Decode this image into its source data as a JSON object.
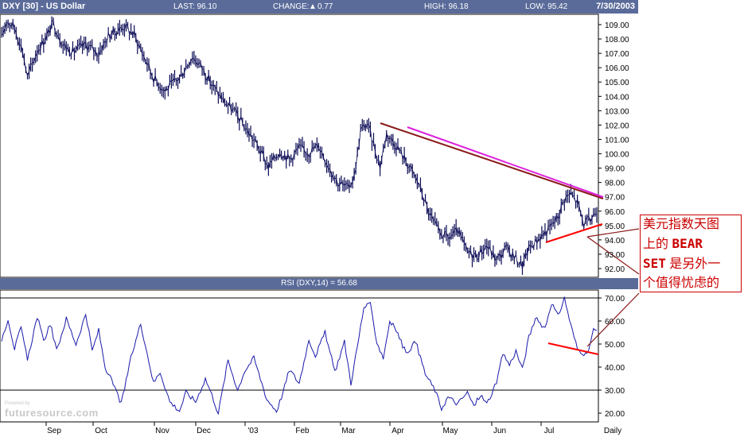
{
  "header": {
    "title": "DXY [30] - US Dollar",
    "last": "LAST: 96.10",
    "change_label": "CHANGE:",
    "change_value": "0.77",
    "high": "HIGH: 96.18",
    "low": "LOW: 95.42",
    "date": "7/30/2003"
  },
  "rsi_header": "RSI (DXY,14) = 56.68",
  "annotation": {
    "line1": "美元指数天图",
    "line2_pre": "上的 ",
    "line2_bold": "BEAR",
    "line3_bold": "SET",
    "line3_post": " 是另外一",
    "line4": "个值得忧虑的"
  },
  "watermark": {
    "brand": "futuresource.com",
    "small": "Powered by"
  },
  "colors": {
    "price": "#0a0a55",
    "rsi": "#1a1aaa",
    "trend_dark": "#8b1a1a",
    "trend_magenta": "#dd22dd",
    "trend_red": "#ff0000",
    "header_bg": "#5a6b9a"
  },
  "chart_data": [
    {
      "type": "line",
      "title": "DXY [30] - US Dollar",
      "ylim": [
        91.5,
        109.5
      ],
      "y_ticks": [
        "109.00",
        "108.00",
        "107.00",
        "106.00",
        "105.00",
        "104.00",
        "103.00",
        "102.00",
        "101.00",
        "100.00",
        "99.00",
        "98.00",
        "97.00",
        "96.00",
        "95.00",
        "94.00",
        "93.00",
        "92.00"
      ],
      "x_tick_labels": [
        "Sep",
        "Oct",
        "Nov",
        "Dec",
        "'03",
        "Feb",
        "Mar",
        "Apr",
        "May",
        "Jun",
        "Jul",
        "Daily"
      ],
      "anchors": [
        [
          0,
          108.0
        ],
        [
          3,
          109.3
        ],
        [
          8,
          108.8
        ],
        [
          13,
          107.2
        ],
        [
          16,
          105.3
        ],
        [
          22,
          107.2
        ],
        [
          28,
          108.2
        ],
        [
          32,
          109.1
        ],
        [
          38,
          107.6
        ],
        [
          44,
          107.1
        ],
        [
          52,
          107.6
        ],
        [
          60,
          107.0
        ],
        [
          66,
          108.2
        ],
        [
          76,
          108.9
        ],
        [
          82,
          108.3
        ],
        [
          88,
          106.8
        ],
        [
          94,
          105.3
        ],
        [
          101,
          104.4
        ],
        [
          110,
          105.3
        ],
        [
          118,
          106.8
        ],
        [
          124,
          106.0
        ],
        [
          130,
          104.8
        ],
        [
          138,
          103.6
        ],
        [
          145,
          102.8
        ],
        [
          152,
          101.6
        ],
        [
          158,
          100.6
        ],
        [
          165,
          99.1
        ],
        [
          172,
          100.2
        ],
        [
          178,
          99.6
        ],
        [
          184,
          100.4
        ],
        [
          190,
          100.1
        ],
        [
          196,
          100.6
        ],
        [
          202,
          99.2
        ],
        [
          208,
          98.0
        ],
        [
          214,
          97.6
        ],
        [
          218,
          98.4
        ],
        [
          222,
          101.6
        ],
        [
          226,
          102.1
        ],
        [
          230,
          100.7
        ],
        [
          234,
          99.1
        ],
        [
          238,
          101.4
        ],
        [
          244,
          100.6
        ],
        [
          252,
          99.1
        ],
        [
          258,
          97.9
        ],
        [
          264,
          95.9
        ],
        [
          270,
          94.6
        ],
        [
          276,
          94.1
        ],
        [
          282,
          94.6
        ],
        [
          288,
          93.1
        ],
        [
          294,
          92.9
        ],
        [
          300,
          93.6
        ],
        [
          306,
          92.6
        ],
        [
          312,
          93.4
        ],
        [
          318,
          92.7
        ],
        [
          322,
          92.2
        ],
        [
          326,
          93.4
        ],
        [
          332,
          94.1
        ],
        [
          338,
          94.7
        ],
        [
          344,
          95.6
        ],
        [
          348,
          96.9
        ],
        [
          352,
          97.2
        ],
        [
          356,
          96.6
        ],
        [
          360,
          95.1
        ],
        [
          364,
          95.4
        ],
        [
          368,
          96.1
        ]
      ]
    },
    {
      "type": "line",
      "title": "RSI (DXY,14) = 56.68",
      "ylim": [
        18,
        72
      ],
      "y_ticks": [
        "70.00",
        "60.00",
        "50.00",
        "40.00",
        "30.00",
        "20.00"
      ],
      "reference_lines": [
        70,
        30
      ],
      "anchors": [
        [
          0,
          52
        ],
        [
          4,
          61
        ],
        [
          8,
          48
        ],
        [
          12,
          57
        ],
        [
          16,
          43
        ],
        [
          22,
          62
        ],
        [
          26,
          51
        ],
        [
          30,
          59
        ],
        [
          34,
          47
        ],
        [
          40,
          61
        ],
        [
          46,
          50
        ],
        [
          52,
          63
        ],
        [
          56,
          47
        ],
        [
          60,
          56
        ],
        [
          64,
          40
        ],
        [
          70,
          31
        ],
        [
          74,
          24
        ],
        [
          80,
          44
        ],
        [
          86,
          59
        ],
        [
          90,
          46
        ],
        [
          94,
          33
        ],
        [
          98,
          38
        ],
        [
          104,
          25
        ],
        [
          110,
          21
        ],
        [
          114,
          29
        ],
        [
          120,
          25
        ],
        [
          126,
          35
        ],
        [
          130,
          28
        ],
        [
          134,
          20
        ],
        [
          140,
          43
        ],
        [
          146,
          30
        ],
        [
          150,
          38
        ],
        [
          156,
          44
        ],
        [
          160,
          35
        ],
        [
          164,
          26
        ],
        [
          170,
          21
        ],
        [
          174,
          29
        ],
        [
          178,
          39
        ],
        [
          184,
          33
        ],
        [
          190,
          52
        ],
        [
          194,
          45
        ],
        [
          200,
          55
        ],
        [
          206,
          38
        ],
        [
          212,
          51
        ],
        [
          216,
          33
        ],
        [
          220,
          49
        ],
        [
          224,
          66
        ],
        [
          228,
          67
        ],
        [
          232,
          51
        ],
        [
          236,
          44
        ],
        [
          240,
          60
        ],
        [
          244,
          56
        ],
        [
          250,
          46
        ],
        [
          256,
          51
        ],
        [
          262,
          37
        ],
        [
          268,
          30
        ],
        [
          272,
          22
        ],
        [
          276,
          27
        ],
        [
          282,
          24
        ],
        [
          288,
          29
        ],
        [
          292,
          23
        ],
        [
          296,
          28
        ],
        [
          300,
          24
        ],
        [
          306,
          33
        ],
        [
          310,
          46
        ],
        [
          314,
          41
        ],
        [
          318,
          47
        ],
        [
          322,
          39
        ],
        [
          326,
          53
        ],
        [
          330,
          61
        ],
        [
          336,
          57
        ],
        [
          340,
          68
        ],
        [
          344,
          62
        ],
        [
          348,
          70
        ],
        [
          352,
          58
        ],
        [
          356,
          48
        ],
        [
          362,
          45
        ],
        [
          366,
          56
        ]
      ]
    }
  ]
}
